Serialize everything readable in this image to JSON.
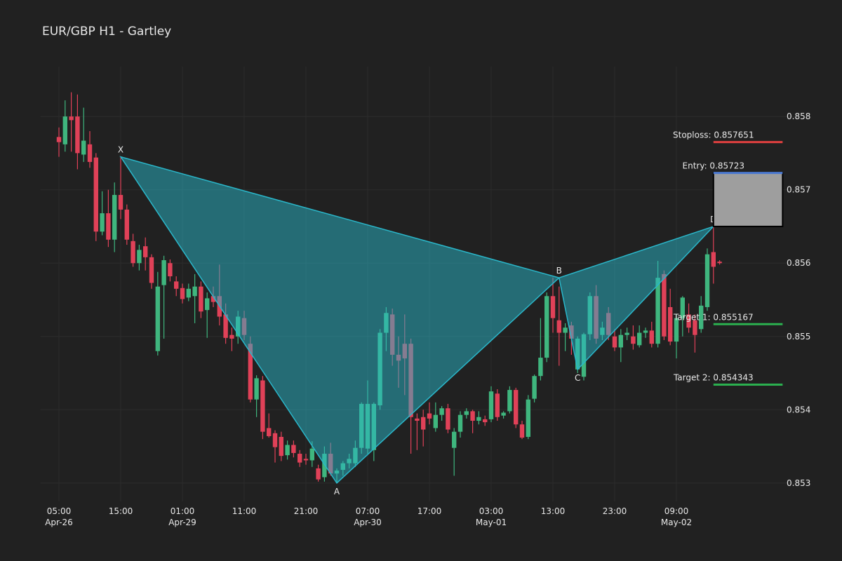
{
  "chart_data": {
    "type": "candlestick",
    "title": "EUR/GBP H1 - Gartley",
    "up_color": "#3fb67e",
    "down_color": "#e04158",
    "grid": true,
    "xlim": [
      -3,
      120
    ],
    "ylim": [
      0.85275,
      0.85868
    ],
    "yticks": [
      0.853,
      0.854,
      0.855,
      0.856,
      0.857,
      0.858
    ],
    "xticks": [
      {
        "value": 0,
        "label": "05:00\nApr-26"
      },
      {
        "value": 10,
        "label": "15:00"
      },
      {
        "value": 20,
        "label": "01:00\nApr-29"
      },
      {
        "value": 30,
        "label": "11:00"
      },
      {
        "value": 40,
        "label": "21:00"
      },
      {
        "value": 50,
        "label": "07:00\nApr-30"
      },
      {
        "value": 60,
        "label": "17:00"
      },
      {
        "value": 70,
        "label": "03:00\nMay-01"
      },
      {
        "value": 80,
        "label": "13:00"
      },
      {
        "value": 90,
        "label": "23:00"
      },
      {
        "value": 100,
        "label": "09:00\nMay-02"
      }
    ],
    "open": [
      0.85772,
      0.85762,
      0.858,
      0.858,
      0.85748,
      0.85762,
      0.85744,
      0.85643,
      0.85668,
      0.85632,
      0.85693,
      0.85673,
      0.8563,
      0.856,
      0.85623,
      0.85608,
      0.8548,
      0.8557,
      0.856,
      0.85575,
      0.85566,
      0.85553,
      0.85555,
      0.85568,
      0.85536,
      0.85555,
      0.85555,
      0.8553,
      0.85502,
      0.855,
      0.85525,
      0.8549,
      0.85414,
      0.8544,
      0.85375,
      0.85368,
      0.85363,
      0.85338,
      0.85352,
      0.8534,
      0.85333,
      0.85331,
      0.8532,
      0.85308,
      0.8534,
      0.85313,
      0.85318,
      0.85327,
      0.85327,
      0.85348,
      0.85347,
      0.85345,
      0.85406,
      0.85505,
      0.8553,
      0.85475,
      0.8549,
      0.8549,
      0.85388,
      0.8539,
      0.85395,
      0.85375,
      0.85393,
      0.85402,
      0.85348,
      0.8537,
      0.85393,
      0.85398,
      0.85385,
      0.85387,
      0.85387,
      0.85422,
      0.85392,
      0.85398,
      0.85427,
      0.8538,
      0.85363,
      0.85415,
      0.85446,
      0.85471,
      0.85555,
      0.85522,
      0.85505,
      0.85515,
      0.85455,
      0.85445,
      0.85503,
      0.85555,
      0.85502,
      0.85532,
      0.855,
      0.85485,
      0.85502,
      0.855,
      0.85488,
      0.85505,
      0.85508,
      0.8549,
      0.85585,
      0.8554,
      0.85493,
      0.85525,
      0.8553,
      0.85522,
      0.8551,
      0.8554,
      0.85615,
      0.85602
    ],
    "high": [
      0.85785,
      0.85822,
      0.85833,
      0.8583,
      0.85812,
      0.8578,
      0.8575,
      0.85698,
      0.857,
      0.8571,
      0.85745,
      0.8568,
      0.8564,
      0.85625,
      0.85635,
      0.85612,
      0.85588,
      0.8561,
      0.85605,
      0.85582,
      0.85572,
      0.85572,
      0.85585,
      0.85575,
      0.8556,
      0.85568,
      0.85598,
      0.85545,
      0.85512,
      0.85535,
      0.85535,
      0.855,
      0.85447,
      0.85446,
      0.85395,
      0.85372,
      0.8537,
      0.85358,
      0.85358,
      0.85345,
      0.8534,
      0.85357,
      0.85325,
      0.8535,
      0.85355,
      0.8532,
      0.8533,
      0.8534,
      0.85358,
      0.8541,
      0.8544,
      0.8541,
      0.8551,
      0.8554,
      0.85538,
      0.855,
      0.8553,
      0.85497,
      0.85395,
      0.854,
      0.8541,
      0.8541,
      0.85405,
      0.85408,
      0.85375,
      0.85398,
      0.85402,
      0.854,
      0.85398,
      0.85392,
      0.85432,
      0.85428,
      0.85398,
      0.85432,
      0.8543,
      0.85385,
      0.8542,
      0.85448,
      0.85525,
      0.8556,
      0.8558,
      0.85568,
      0.85518,
      0.8552,
      0.855,
      0.85505,
      0.8556,
      0.8557,
      0.8552,
      0.8554,
      0.8551,
      0.8551,
      0.85512,
      0.85515,
      0.85515,
      0.85512,
      0.8552,
      0.85603,
      0.8559,
      0.85565,
      0.8553,
      0.85555,
      0.85545,
      0.8553,
      0.85555,
      0.8562,
      0.8565,
      0.85604
    ],
    "low": [
      0.85745,
      0.85752,
      0.85752,
      0.85728,
      0.85738,
      0.8573,
      0.8563,
      0.85638,
      0.85622,
      0.85615,
      0.8566,
      0.85625,
      0.85595,
      0.8559,
      0.8559,
      0.85565,
      0.85474,
      0.85497,
      0.85575,
      0.85555,
      0.85545,
      0.85548,
      0.85518,
      0.85525,
      0.85498,
      0.8554,
      0.85515,
      0.8549,
      0.8548,
      0.8549,
      0.85495,
      0.8541,
      0.8539,
      0.8536,
      0.85362,
      0.85328,
      0.8533,
      0.85332,
      0.85335,
      0.85322,
      0.85325,
      0.85322,
      0.85302,
      0.85302,
      0.8531,
      0.853,
      0.8531,
      0.8532,
      0.85322,
      0.8534,
      0.8534,
      0.8533,
      0.854,
      0.8548,
      0.8546,
      0.8543,
      0.8542,
      0.8534,
      0.85345,
      0.8535,
      0.8538,
      0.8537,
      0.85385,
      0.85368,
      0.8531,
      0.85362,
      0.85388,
      0.85368,
      0.8538,
      0.85378,
      0.85383,
      0.85385,
      0.85388,
      0.85395,
      0.85375,
      0.8536,
      0.8536,
      0.8541,
      0.8544,
      0.85465,
      0.85505,
      0.8546,
      0.8548,
      0.85475,
      0.8545,
      0.8544,
      0.85495,
      0.8549,
      0.85495,
      0.85495,
      0.8548,
      0.85465,
      0.85495,
      0.85482,
      0.85485,
      0.85498,
      0.85485,
      0.85485,
      0.85495,
      0.85488,
      0.8547,
      0.855,
      0.85505,
      0.85478,
      0.85505,
      0.85535,
      0.85572,
      0.85598
    ],
    "close": [
      0.85765,
      0.858,
      0.85795,
      0.8575,
      0.85767,
      0.85738,
      0.85643,
      0.85668,
      0.85632,
      0.85693,
      0.85673,
      0.85632,
      0.856,
      0.85618,
      0.85608,
      0.85573,
      0.85568,
      0.85604,
      0.85582,
      0.85565,
      0.85551,
      0.85565,
      0.85568,
      0.85534,
      0.85552,
      0.85547,
      0.85527,
      0.85498,
      0.85497,
      0.85527,
      0.85502,
      0.85414,
      0.85443,
      0.8537,
      0.85364,
      0.85349,
      0.85337,
      0.85352,
      0.85341,
      0.85328,
      0.85331,
      0.85347,
      0.85305,
      0.8534,
      0.85313,
      0.85317,
      0.85327,
      0.85333,
      0.85348,
      0.85408,
      0.85408,
      0.85408,
      0.85505,
      0.85532,
      0.85475,
      0.85467,
      0.8547,
      0.8539,
      0.85385,
      0.85373,
      0.85388,
      0.85393,
      0.85402,
      0.85373,
      0.8537,
      0.85393,
      0.85398,
      0.85385,
      0.8539,
      0.85383,
      0.85425,
      0.8539,
      0.85396,
      0.85427,
      0.8538,
      0.85362,
      0.85414,
      0.85446,
      0.85471,
      0.85555,
      0.85525,
      0.85505,
      0.85512,
      0.85497,
      0.85497,
      0.85503,
      0.85555,
      0.85497,
      0.85512,
      0.85502,
      0.85485,
      0.85502,
      0.85505,
      0.8549,
      0.85505,
      0.85508,
      0.8549,
      0.8558,
      0.855,
      0.85493,
      0.85525,
      0.85553,
      0.85512,
      0.85502,
      0.85542,
      0.85612,
      0.85595,
      0.856
    ],
    "pattern": {
      "color": "#2ab7ca",
      "points": [
        {
          "name": "X",
          "x": 10,
          "y": 0.85745
        },
        {
          "name": "A",
          "x": 45,
          "y": 0.853
        },
        {
          "name": "B",
          "x": 81,
          "y": 0.8558
        },
        {
          "name": "C",
          "x": 84,
          "y": 0.85455
        },
        {
          "name": "D",
          "x": 106,
          "y": 0.8565
        }
      ]
    },
    "level_span": [
      106,
      117.2
    ],
    "entry_box_color": "#9e9e9e",
    "levels": [
      {
        "label": "Stoploss: 0.857651",
        "value": 0.857651,
        "color": "#e0403f"
      },
      {
        "label": "Entry: 0.85723",
        "value": 0.85723,
        "color": "#4a78d0"
      },
      {
        "label": "Target 1: 0.855167",
        "value": 0.855167,
        "color": "#2bb04f"
      },
      {
        "label": "Target 2: 0.854343",
        "value": 0.854343,
        "color": "#2bb04f"
      }
    ]
  }
}
